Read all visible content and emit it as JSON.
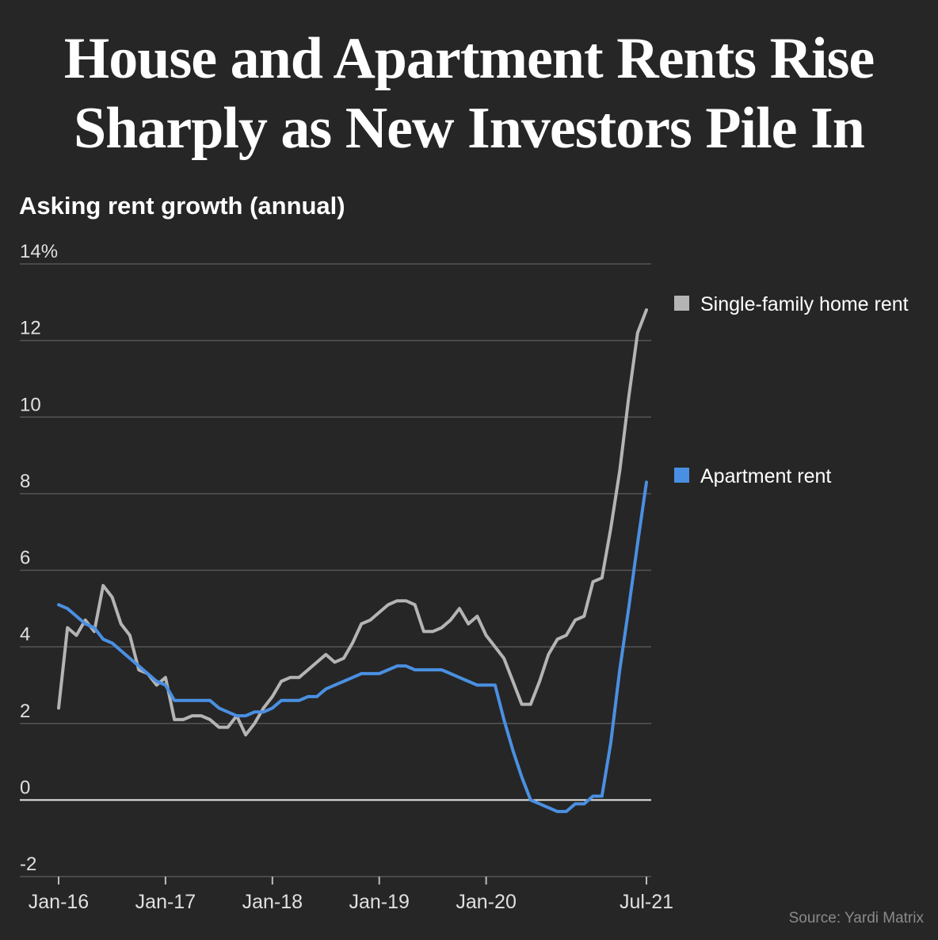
{
  "title_line1": "House and Apartment Rents Rise",
  "title_line2": "Sharply as New Investors Pile In",
  "subtitle": "Asking rent growth (annual)",
  "source": "Source: Yardi Matrix",
  "colors": {
    "background": "#262626",
    "single_family": "#b4b4b4",
    "apartment": "#4a90e2",
    "grid": "#555555",
    "zero_line": "#e6e6e6",
    "text": "#ffffff",
    "tick_text": "#e0e0e0"
  },
  "chart_data": {
    "type": "line",
    "title": "Asking rent growth (annual)",
    "xlabel": "",
    "ylabel": "",
    "ylim": [
      -2,
      14
    ],
    "y_ticks": [
      {
        "value": 14,
        "label": "14%"
      },
      {
        "value": 12,
        "label": "12"
      },
      {
        "value": 10,
        "label": "10"
      },
      {
        "value": 8,
        "label": "8"
      },
      {
        "value": 6,
        "label": "6"
      },
      {
        "value": 4,
        "label": "4"
      },
      {
        "value": 2,
        "label": "2"
      },
      {
        "value": 0,
        "label": "0"
      },
      {
        "value": -2,
        "label": "-2"
      }
    ],
    "x_ticks": [
      {
        "index": 0,
        "label": "Jan-16"
      },
      {
        "index": 12,
        "label": "Jan-17"
      },
      {
        "index": 24,
        "label": "Jan-18"
      },
      {
        "index": 36,
        "label": "Jan-19"
      },
      {
        "index": 48,
        "label": "Jan-20"
      },
      {
        "index": 66,
        "label": "Jul-21"
      }
    ],
    "x_range": [
      0,
      66
    ],
    "legend": "right",
    "series": [
      {
        "name": "Single-family home rent",
        "key": "single_family",
        "values": [
          2.4,
          4.5,
          4.3,
          4.7,
          4.4,
          5.6,
          5.3,
          4.6,
          4.3,
          3.4,
          3.3,
          3.0,
          3.2,
          2.1,
          2.1,
          2.2,
          2.2,
          2.1,
          1.9,
          1.9,
          2.2,
          1.7,
          2.0,
          2.4,
          2.7,
          3.1,
          3.2,
          3.2,
          3.4,
          3.6,
          3.8,
          3.6,
          3.7,
          4.1,
          4.6,
          4.7,
          4.9,
          5.1,
          5.2,
          5.2,
          5.1,
          4.4,
          4.4,
          4.5,
          4.7,
          5.0,
          4.6,
          4.8,
          4.3,
          4.0,
          3.7,
          3.1,
          2.5,
          2.5,
          3.1,
          3.8,
          4.2,
          4.3,
          4.7,
          4.8,
          5.7,
          5.8,
          7.1,
          8.6,
          10.5,
          12.2,
          12.8
        ]
      },
      {
        "name": "Apartment rent",
        "key": "apartment",
        "values": [
          5.1,
          5.0,
          4.8,
          4.6,
          4.5,
          4.2,
          4.1,
          3.9,
          3.7,
          3.5,
          3.3,
          3.1,
          3.0,
          2.6,
          2.6,
          2.6,
          2.6,
          2.6,
          2.4,
          2.3,
          2.2,
          2.2,
          2.3,
          2.3,
          2.4,
          2.6,
          2.6,
          2.6,
          2.7,
          2.7,
          2.9,
          3.0,
          3.1,
          3.2,
          3.3,
          3.3,
          3.3,
          3.4,
          3.5,
          3.5,
          3.4,
          3.4,
          3.4,
          3.4,
          3.3,
          3.2,
          3.1,
          3.0,
          3.0,
          3.0,
          2.1,
          1.3,
          0.6,
          0.0,
          -0.1,
          -0.2,
          -0.3,
          -0.3,
          -0.1,
          -0.1,
          0.1,
          0.1,
          1.5,
          3.4,
          5.0,
          6.7,
          8.3
        ]
      }
    ]
  }
}
